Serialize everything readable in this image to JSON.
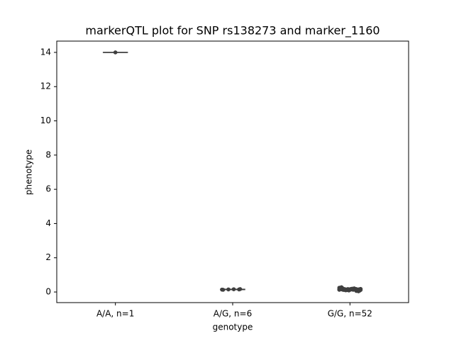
{
  "chart_data": {
    "type": "box",
    "title": "markerQTL plot for SNP rs138273 and marker_1160",
    "xlabel": "genotype",
    "ylabel": "phenotype",
    "categories": [
      "A/A, n=1",
      "A/G, n=6",
      "G/G, n=52"
    ],
    "boxes": [
      {
        "q1": 14.0,
        "median": 14.0,
        "q3": 14.0,
        "whislo": 14.0,
        "whishi": 14.0
      },
      {
        "q1": 0.14,
        "median": 0.15,
        "q3": 0.16,
        "whislo": 0.13,
        "whishi": 0.17
      },
      {
        "q1": 0.12,
        "median": 0.15,
        "q3": 0.18,
        "whislo": 0.06,
        "whishi": 0.25
      }
    ],
    "points": [
      [
        14.0
      ],
      [
        0.14,
        0.15,
        0.16,
        0.15,
        0.13,
        0.17
      ],
      [
        0.15,
        0.12,
        0.18,
        0.1,
        0.2,
        0.14,
        0.16,
        0.13,
        0.17,
        0.11,
        0.19,
        0.15,
        0.22,
        0.08,
        0.14,
        0.16,
        0.12,
        0.18,
        0.15,
        0.13,
        0.17,
        0.25,
        0.06,
        0.15,
        0.14,
        0.16,
        0.12,
        0.19,
        0.11,
        0.18,
        0.15,
        0.13,
        0.17,
        0.14,
        0.16,
        0.21,
        0.09,
        0.15,
        0.12,
        0.18,
        0.14,
        0.16,
        0.13,
        0.17,
        0.15,
        0.11,
        0.19,
        0.14,
        0.16,
        0.15,
        0.28,
        0.04
      ]
    ],
    "box_color": "#8da0cb",
    "line_color": "#3f3f3f",
    "point_color": "#3f3f3f",
    "ylim": [
      -0.62,
      14.66
    ],
    "yticks": [
      0,
      2,
      4,
      6,
      8,
      10,
      12,
      14
    ]
  }
}
